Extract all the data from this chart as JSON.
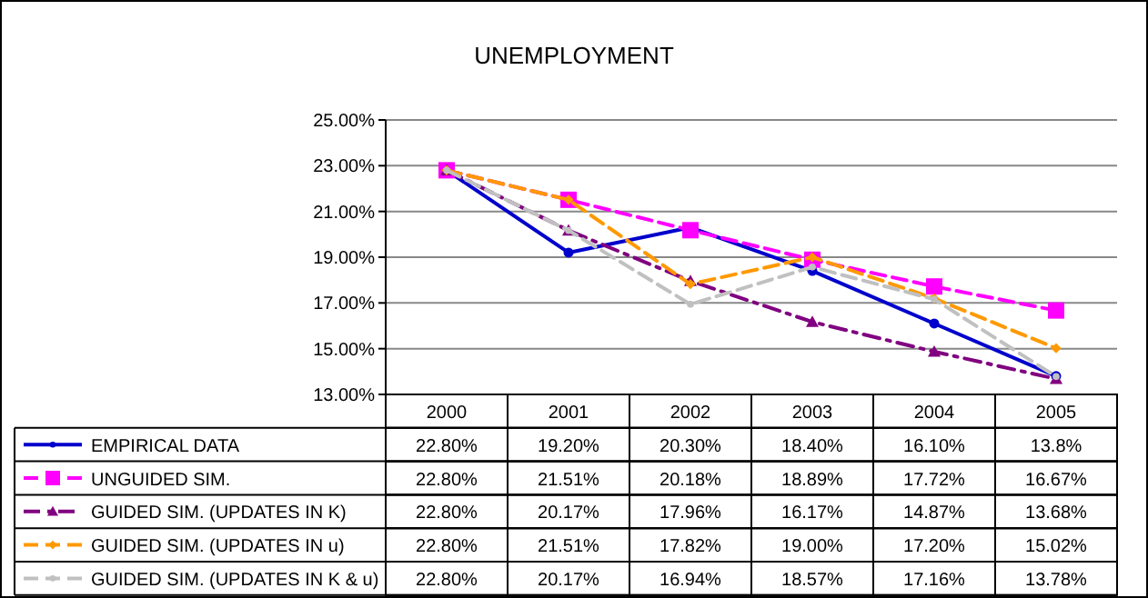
{
  "chart_data": {
    "type": "line",
    "title": "UNEMPLOYMENT",
    "categories": [
      "2000",
      "2001",
      "2002",
      "2003",
      "2004",
      "2005"
    ],
    "ylim": [
      13,
      25
    ],
    "yticks": [
      {
        "value": 13,
        "label": "13.00%"
      },
      {
        "value": 15,
        "label": "15.00%"
      },
      {
        "value": 17,
        "label": "17.00%"
      },
      {
        "value": 19,
        "label": "19.00%"
      },
      {
        "value": 21,
        "label": "21.00%"
      },
      {
        "value": 23,
        "label": "23.00%"
      },
      {
        "value": 25,
        "label": "25.00%"
      }
    ],
    "grid": "y",
    "legend": "bottom",
    "series": [
      {
        "name": "EMPIRICAL DATA",
        "color": "#0000cc",
        "marker": "circle",
        "line_style": "solid",
        "values": [
          22.8,
          19.2,
          20.3,
          18.4,
          16.1,
          13.8
        ],
        "value_labels": [
          "22.80%",
          "19.20%",
          "20.30%",
          "18.40%",
          "16.10%",
          "13.8%"
        ]
      },
      {
        "name": "UNGUIDED SIM.",
        "color": "#ff00ff",
        "marker": "square",
        "line_style": "dashed",
        "values": [
          22.8,
          21.51,
          20.18,
          18.89,
          17.72,
          16.67
        ],
        "value_labels": [
          "22.80%",
          "21.51%",
          "20.18%",
          "18.89%",
          "17.72%",
          "16.67%"
        ]
      },
      {
        "name": "GUIDED SIM. (UPDATES IN K)",
        "color": "#800080",
        "marker": "triangle",
        "line_style": "dashdot",
        "values": [
          22.8,
          20.17,
          17.96,
          16.17,
          14.87,
          13.68
        ],
        "value_labels": [
          "22.80%",
          "20.17%",
          "17.96%",
          "16.17%",
          "14.87%",
          "13.68%"
        ]
      },
      {
        "name": "GUIDED SIM. (UPDATES IN u)",
        "color": "#ff9900",
        "marker": "diamond",
        "line_style": "dashed",
        "values": [
          22.8,
          21.51,
          17.82,
          19.0,
          17.2,
          15.02
        ],
        "value_labels": [
          "22.80%",
          "21.51%",
          "17.82%",
          "19.00%",
          "17.20%",
          "15.02%"
        ]
      },
      {
        "name": "GUIDED SIM. (UPDATES IN K & u)",
        "color": "#c0c0c0",
        "marker": "circle",
        "line_style": "dashed",
        "values": [
          22.8,
          20.17,
          16.94,
          18.57,
          17.16,
          13.78
        ],
        "value_labels": [
          "22.80%",
          "20.17%",
          "16.94%",
          "18.57%",
          "17.16%",
          "13.78%"
        ]
      }
    ]
  }
}
